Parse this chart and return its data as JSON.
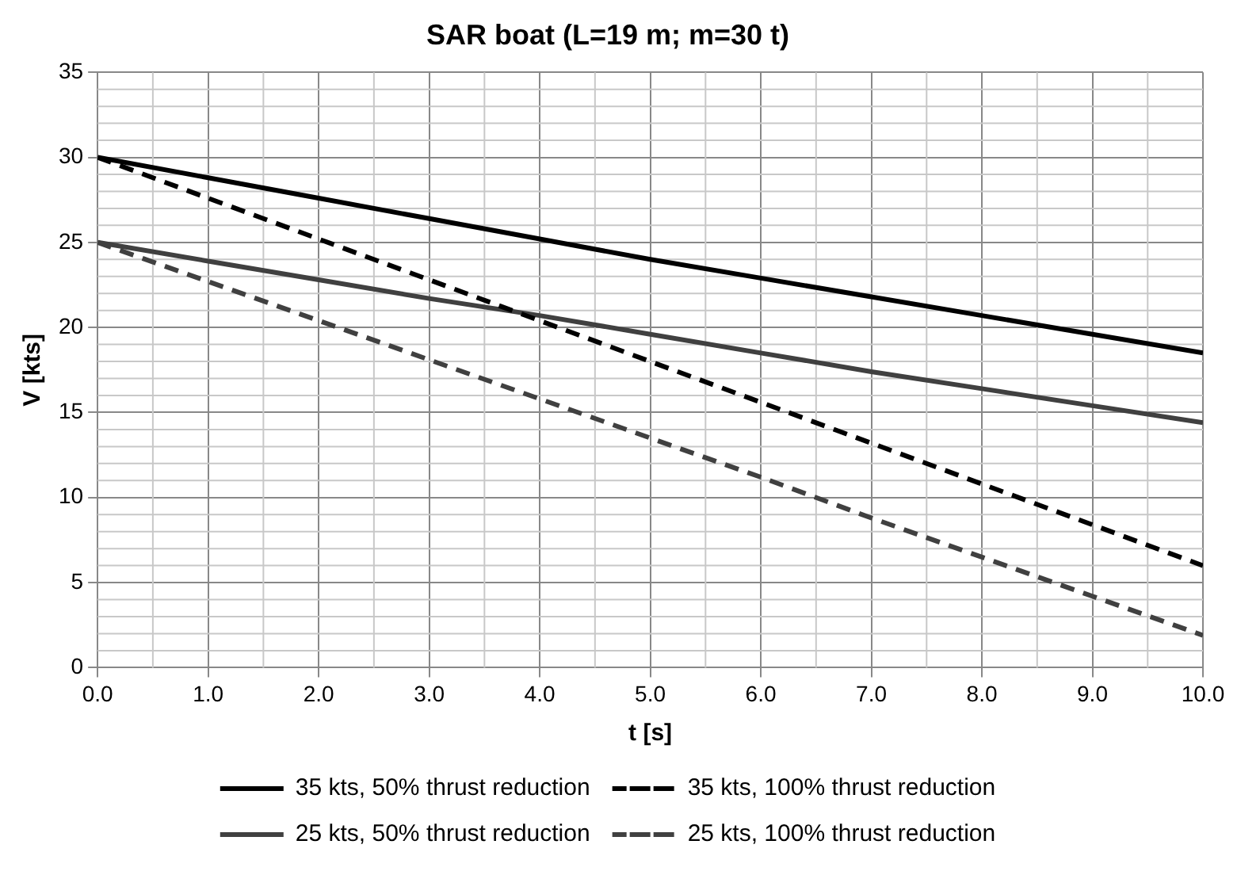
{
  "chart_data": {
    "type": "line",
    "title": "SAR boat (L=19 m; m=30 t)",
    "xlabel": "t [s]",
    "ylabel": "V [kts]",
    "x": [
      0,
      1,
      2,
      3,
      4,
      5,
      6,
      7,
      8,
      9,
      10
    ],
    "xlim": [
      0,
      10
    ],
    "xticks": [
      {
        "value": 0,
        "label": "0.0"
      },
      {
        "value": 1,
        "label": "1.0"
      },
      {
        "value": 2,
        "label": "2.0"
      },
      {
        "value": 3,
        "label": "3.0"
      },
      {
        "value": 4,
        "label": "4.0"
      },
      {
        "value": 5,
        "label": "5.0"
      },
      {
        "value": 6,
        "label": "6.0"
      },
      {
        "value": 7,
        "label": "7.0"
      },
      {
        "value": 8,
        "label": "8.0"
      },
      {
        "value": 9,
        "label": "9.0"
      },
      {
        "value": 10,
        "label": "10.0"
      }
    ],
    "ylim": [
      0,
      35
    ],
    "yticks": [
      0,
      5,
      10,
      15,
      20,
      25,
      30,
      35
    ],
    "grid": true,
    "legend": "bottom",
    "marker": "none",
    "series": [
      {
        "name": "35 kts, 50% thrust reduction",
        "color": "#000000",
        "line_style": "solid",
        "values": [
          30,
          28.8,
          27.6,
          26.4,
          25.2,
          24.0,
          22.9,
          21.8,
          20.7,
          19.6,
          18.5
        ]
      },
      {
        "name": "35 kts, 100% thrust reduction",
        "color": "#000000",
        "line_style": "dashed",
        "values": [
          30,
          27.6,
          25.2,
          22.8,
          20.4,
          18.0,
          15.6,
          13.2,
          10.8,
          8.4,
          6.0
        ]
      },
      {
        "name": "25 kts, 50% thrust reduction",
        "color": "#404040",
        "line_style": "solid",
        "values": [
          25,
          23.9,
          22.8,
          21.7,
          20.7,
          19.6,
          18.5,
          17.4,
          16.4,
          15.4,
          14.4
        ]
      },
      {
        "name": "25 kts, 100% thrust reduction",
        "color": "#404040",
        "line_style": "dashed",
        "values": [
          25,
          22.7,
          20.4,
          18.1,
          15.8,
          13.5,
          11.2,
          8.8,
          6.5,
          4.2,
          1.9
        ]
      }
    ]
  }
}
